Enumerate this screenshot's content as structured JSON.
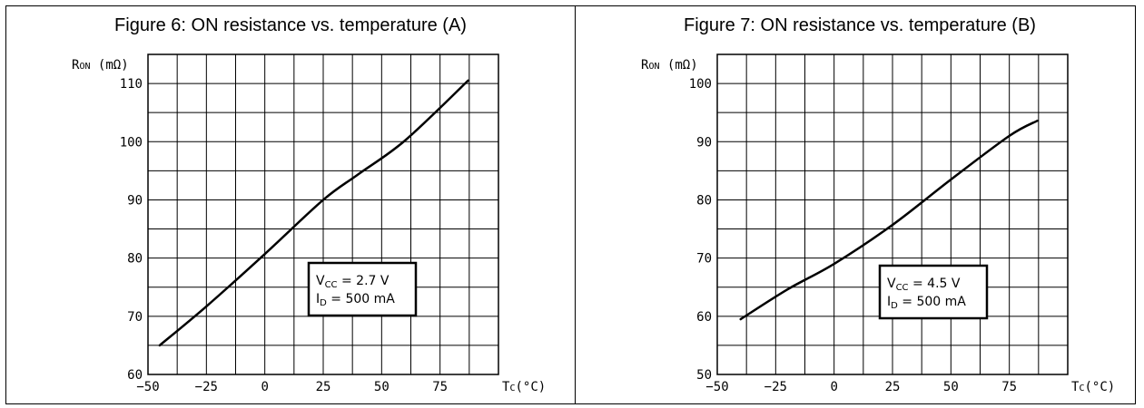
{
  "chart_data": [
    {
      "type": "line",
      "title": "Figure 6: ON resistance vs. temperature (A)",
      "ylabel": {
        "main": "R",
        "sub": "ON",
        "unit": "(mΩ)"
      },
      "xlabel": {
        "main": "T",
        "sub": "C",
        "unit": "(°C)"
      },
      "xlim": [
        -50,
        100
      ],
      "ylim": [
        60,
        115
      ],
      "x_ticks": [
        -50,
        -25,
        0,
        25,
        50,
        75
      ],
      "x_tick_labels": [
        "−50",
        "−25",
        "0",
        "25",
        "50",
        "75"
      ],
      "y_ticks": [
        60,
        70,
        80,
        90,
        100,
        110
      ],
      "grid": true,
      "series": [
        {
          "x": [
            -45,
            -25,
            0,
            25,
            40,
            60,
            87
          ],
          "y": [
            65,
            71.7,
            80.7,
            90,
            94.4,
            100.2,
            110.5
          ]
        }
      ],
      "annotation": {
        "line1": {
          "main": "V",
          "sub": "CC",
          "text": " = 2.7 V"
        },
        "line2": {
          "main": "I",
          "sub": "D",
          "text": " = 500 mA"
        }
      }
    },
    {
      "type": "line",
      "title": "Figure 7: ON resistance vs. temperature (B)",
      "ylabel": {
        "main": "R",
        "sub": "ON",
        "unit": "(mΩ)"
      },
      "xlabel": {
        "main": "T",
        "sub": "C",
        "unit": "(°C)"
      },
      "xlim": [
        -50,
        100
      ],
      "ylim": [
        50,
        105
      ],
      "x_ticks": [
        -50,
        -25,
        0,
        25,
        50,
        75
      ],
      "x_tick_labels": [
        "−50",
        "−25",
        "0",
        "25",
        "50",
        "75"
      ],
      "y_ticks": [
        50,
        60,
        70,
        80,
        90,
        100
      ],
      "grid": true,
      "series": [
        {
          "x": [
            -40,
            -20,
            0,
            25,
            50,
            75,
            87
          ],
          "y": [
            59.5,
            64.6,
            69,
            75.7,
            83.5,
            91,
            93.6
          ]
        }
      ],
      "annotation": {
        "line1": {
          "main": "V",
          "sub": "CC",
          "text": " = 4.5 V"
        },
        "line2": {
          "main": "I",
          "sub": "D",
          "text": " = 500 mA"
        }
      }
    }
  ]
}
